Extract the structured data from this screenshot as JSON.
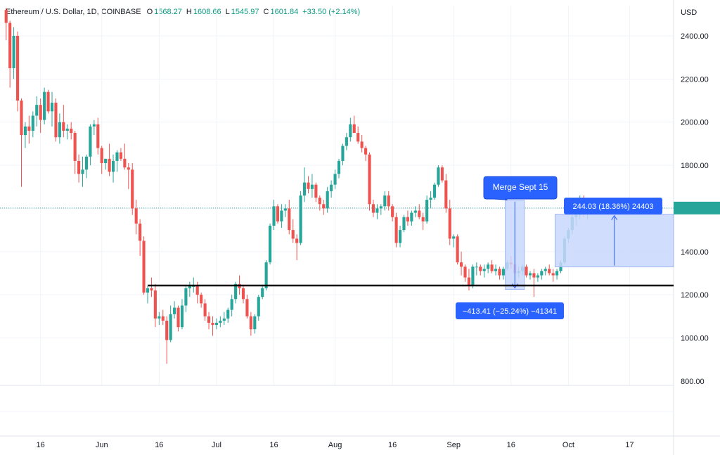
{
  "header": {
    "symbol": "Ethereum / U.S. Dollar, 1D, COINBASE",
    "o_label": "O",
    "o_value": "1568.27",
    "h_label": "H",
    "h_value": "1608.66",
    "l_label": "L",
    "l_value": "1545.97",
    "c_label": "C",
    "c_value": "1601.84",
    "change": "+33.50 (+2.14%)"
  },
  "colors": {
    "up": "#26a69a",
    "down": "#ef5350",
    "callout": "#2962ff",
    "range_fill": "#c9d7fb",
    "support": "#000000"
  },
  "annotations": {
    "merge_label": "Merge Sept 15",
    "drop_label": "−413.41 (−25.24%) −41341",
    "rise_label": "244.03 (18.36%) 24403"
  },
  "chart_data": {
    "type": "candlestick",
    "title": "Ethereum / U.S. Dollar, 1D, COINBASE",
    "y_axis": {
      "unit": "USD",
      "ticks": [
        "2400.00",
        "2200.00",
        "2000.00",
        "1800.00",
        "1600.00",
        "1400.00",
        "1200.00",
        "1000.00",
        "800.00"
      ],
      "range": [
        780,
        2540
      ]
    },
    "x_axis": {
      "ticks": [
        "16",
        "Jun",
        "16",
        "Jul",
        "16",
        "Aug",
        "16",
        "Sep",
        "16",
        "Oct",
        "17"
      ],
      "range_dates": [
        "2022-05-07",
        "2022-10-28"
      ]
    },
    "support_level": 1243,
    "last_price": 1601.84,
    "measure_drop": {
      "from_date": "2022-09-15",
      "to_date": "2022-09-19",
      "from_price": 1638,
      "to_price": 1225,
      "change": -413.41
    },
    "measure_rise": {
      "from_date": "2022-09-28",
      "to_date": "2022-10-28",
      "from_price": 1329,
      "to_price": 1573,
      "change": 244.03
    },
    "series": [
      {
        "values": [
          [
            2520,
            2530,
            2380,
            2460
          ],
          [
            2460,
            2470,
            2160,
            2250
          ],
          [
            2250,
            2440,
            2200,
            2400
          ],
          [
            2400,
            2420,
            2050,
            2100
          ],
          [
            2100,
            2110,
            1700,
            1940
          ],
          [
            1940,
            2000,
            1880,
            1980
          ],
          [
            1980,
            2030,
            1900,
            1960
          ],
          [
            1960,
            2050,
            1930,
            2030
          ],
          [
            2030,
            2120,
            1980,
            2080
          ],
          [
            2080,
            2110,
            1950,
            2010
          ],
          [
            2010,
            2160,
            1990,
            2140
          ],
          [
            2140,
            2150,
            2040,
            2050
          ],
          [
            2050,
            2140,
            1980,
            2090
          ],
          [
            2090,
            2110,
            1910,
            1930
          ],
          [
            1930,
            2040,
            1900,
            2000
          ],
          [
            2000,
            2080,
            1930,
            1960
          ],
          [
            1960,
            1990,
            1920,
            1970
          ],
          [
            1970,
            2000,
            1920,
            1950
          ],
          [
            1950,
            1960,
            1760,
            1820
          ],
          [
            1820,
            1850,
            1720,
            1760
          ],
          [
            1760,
            1840,
            1700,
            1780
          ],
          [
            1780,
            1850,
            1740,
            1840
          ],
          [
            1840,
            1990,
            1800,
            1980
          ],
          [
            1980,
            2010,
            1940,
            1990
          ],
          [
            1990,
            2020,
            1850,
            1880
          ],
          [
            1880,
            1890,
            1760,
            1810
          ],
          [
            1810,
            1830,
            1780,
            1830
          ],
          [
            1830,
            1900,
            1750,
            1770
          ],
          [
            1770,
            1850,
            1720,
            1820
          ],
          [
            1820,
            1870,
            1770,
            1860
          ],
          [
            1860,
            1880,
            1820,
            1830
          ],
          [
            1830,
            1900,
            1780,
            1790
          ],
          [
            1790,
            1810,
            1690,
            1780
          ],
          [
            1780,
            1810,
            1570,
            1600
          ],
          [
            1600,
            1640,
            1480,
            1530
          ],
          [
            1530,
            1550,
            1380,
            1450
          ],
          [
            1450,
            1470,
            1200,
            1210
          ],
          [
            1210,
            1240,
            1160,
            1230
          ],
          [
            1230,
            1280,
            1190,
            1220
          ],
          [
            1220,
            1250,
            1050,
            1090
          ],
          [
            1090,
            1120,
            1060,
            1100
          ],
          [
            1100,
            1130,
            1060,
            1080
          ],
          [
            1080,
            1100,
            880,
            990
          ],
          [
            990,
            1150,
            980,
            1110
          ],
          [
            1110,
            1170,
            1090,
            1140
          ],
          [
            1140,
            1150,
            1030,
            1050
          ],
          [
            1050,
            1180,
            1040,
            1150
          ],
          [
            1150,
            1240,
            1120,
            1230
          ],
          [
            1230,
            1260,
            1190,
            1240
          ],
          [
            1240,
            1280,
            1210,
            1240
          ],
          [
            1240,
            1260,
            1160,
            1200
          ],
          [
            1200,
            1210,
            1140,
            1160
          ],
          [
            1160,
            1180,
            1080,
            1100
          ],
          [
            1100,
            1120,
            1040,
            1070
          ],
          [
            1070,
            1100,
            1010,
            1060
          ],
          [
            1060,
            1090,
            1040,
            1070
          ],
          [
            1070,
            1100,
            1050,
            1080
          ],
          [
            1080,
            1120,
            1060,
            1090
          ],
          [
            1090,
            1140,
            1070,
            1130
          ],
          [
            1130,
            1200,
            1100,
            1180
          ],
          [
            1180,
            1260,
            1160,
            1250
          ],
          [
            1250,
            1290,
            1200,
            1230
          ],
          [
            1230,
            1240,
            1160,
            1180
          ],
          [
            1180,
            1200,
            1090,
            1100
          ],
          [
            1100,
            1120,
            1010,
            1040
          ],
          [
            1040,
            1110,
            1020,
            1100
          ],
          [
            1100,
            1200,
            1080,
            1190
          ],
          [
            1190,
            1240,
            1180,
            1230
          ],
          [
            1230,
            1360,
            1220,
            1350
          ],
          [
            1350,
            1530,
            1340,
            1520
          ],
          [
            1520,
            1640,
            1500,
            1610
          ],
          [
            1610,
            1620,
            1530,
            1540
          ],
          [
            1540,
            1620,
            1510,
            1590
          ],
          [
            1590,
            1620,
            1560,
            1600
          ],
          [
            1600,
            1640,
            1480,
            1500
          ],
          [
            1500,
            1550,
            1440,
            1460
          ],
          [
            1460,
            1480,
            1360,
            1440
          ],
          [
            1440,
            1680,
            1430,
            1660
          ],
          [
            1660,
            1790,
            1630,
            1720
          ],
          [
            1720,
            1750,
            1670,
            1690
          ],
          [
            1690,
            1760,
            1650,
            1710
          ],
          [
            1710,
            1720,
            1630,
            1650
          ],
          [
            1650,
            1660,
            1590,
            1620
          ],
          [
            1620,
            1640,
            1570,
            1600
          ],
          [
            1600,
            1700,
            1580,
            1680
          ],
          [
            1680,
            1730,
            1650,
            1710
          ],
          [
            1710,
            1780,
            1690,
            1760
          ],
          [
            1760,
            1830,
            1740,
            1820
          ],
          [
            1820,
            1900,
            1800,
            1890
          ],
          [
            1890,
            1950,
            1870,
            1930
          ],
          [
            1930,
            2020,
            1910,
            1990
          ],
          [
            1990,
            2030,
            1950,
            1950
          ],
          [
            1950,
            1980,
            1900,
            1910
          ],
          [
            1910,
            1940,
            1860,
            1880
          ],
          [
            1880,
            1890,
            1820,
            1850
          ],
          [
            1850,
            1860,
            1590,
            1620
          ],
          [
            1620,
            1640,
            1560,
            1580
          ],
          [
            1580,
            1620,
            1550,
            1600
          ],
          [
            1600,
            1620,
            1570,
            1610
          ],
          [
            1610,
            1680,
            1590,
            1660
          ],
          [
            1660,
            1680,
            1590,
            1610
          ],
          [
            1610,
            1620,
            1540,
            1560
          ],
          [
            1560,
            1580,
            1420,
            1440
          ],
          [
            1440,
            1520,
            1420,
            1500
          ],
          [
            1500,
            1570,
            1490,
            1560
          ],
          [
            1560,
            1590,
            1520,
            1540
          ],
          [
            1540,
            1590,
            1520,
            1580
          ],
          [
            1580,
            1610,
            1560,
            1590
          ],
          [
            1590,
            1620,
            1550,
            1560
          ],
          [
            1560,
            1580,
            1500,
            1540
          ],
          [
            1540,
            1660,
            1530,
            1640
          ],
          [
            1640,
            1680,
            1600,
            1650
          ],
          [
            1650,
            1720,
            1640,
            1710
          ],
          [
            1710,
            1800,
            1700,
            1790
          ],
          [
            1790,
            1800,
            1720,
            1730
          ],
          [
            1730,
            1760,
            1580,
            1600
          ],
          [
            1600,
            1640,
            1430,
            1460
          ],
          [
            1460,
            1480,
            1420,
            1470
          ],
          [
            1470,
            1480,
            1340,
            1350
          ],
          [
            1350,
            1400,
            1290,
            1330
          ],
          [
            1330,
            1340,
            1260,
            1280
          ],
          [
            1280,
            1320,
            1220,
            1240
          ],
          [
            1240,
            1340,
            1230,
            1330
          ],
          [
            1330,
            1350,
            1290,
            1330
          ],
          [
            1330,
            1340,
            1290,
            1310
          ],
          [
            1310,
            1340,
            1280,
            1320
          ],
          [
            1320,
            1350,
            1300,
            1340
          ],
          [
            1340,
            1360,
            1300,
            1310
          ],
          [
            1310,
            1340,
            1290,
            1320
          ],
          [
            1320,
            1330,
            1270,
            1290
          ],
          [
            1290,
            1330,
            1270,
            1320
          ],
          [
            1320,
            1360,
            1310,
            1350
          ],
          [
            1350,
            1380,
            1320,
            1340
          ],
          [
            1340,
            1350,
            1290,
            1300
          ],
          [
            1300,
            1330,
            1280,
            1310
          ],
          [
            1310,
            1340,
            1290,
            1330
          ],
          [
            1330,
            1340,
            1280,
            1290
          ],
          [
            1290,
            1310,
            1270,
            1300
          ],
          [
            1300,
            1320,
            1190,
            1280
          ],
          [
            1280,
            1300,
            1260,
            1290
          ],
          [
            1290,
            1320,
            1270,
            1310
          ],
          [
            1310,
            1330,
            1290,
            1320
          ],
          [
            1320,
            1340,
            1290,
            1300
          ],
          [
            1300,
            1320,
            1260,
            1290
          ],
          [
            1290,
            1320,
            1270,
            1310
          ],
          [
            1310,
            1360,
            1300,
            1350
          ],
          [
            1350,
            1470,
            1340,
            1460
          ],
          [
            1460,
            1510,
            1440,
            1500
          ],
          [
            1500,
            1570,
            1480,
            1560
          ],
          [
            1560,
            1600,
            1520,
            1570
          ],
          [
            1570,
            1660,
            1550,
            1640
          ],
          [
            1640,
            1660,
            1560,
            1580
          ],
          [
            1580,
            1610,
            1550,
            1600
          ]
        ]
      }
    ]
  }
}
